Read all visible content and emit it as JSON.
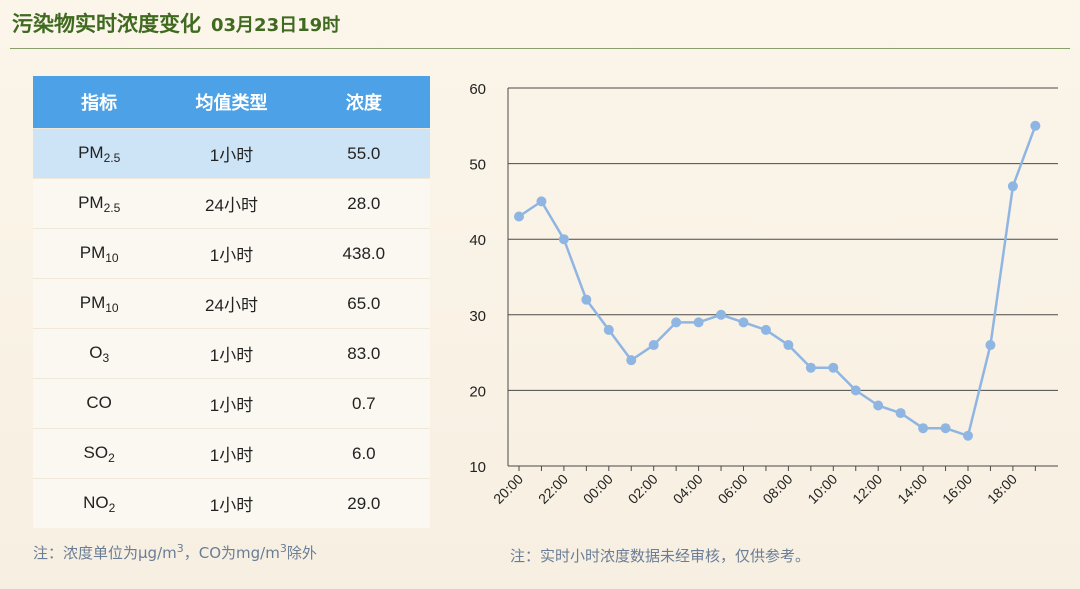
{
  "header": {
    "title": "污染物实时浓度变化",
    "time": "03月23日19时"
  },
  "table": {
    "headers": [
      "指标",
      "均值类型",
      "浓度"
    ],
    "rows": [
      {
        "name": "PM",
        "sub": "2.5",
        "avg": "1小时",
        "value": "55.0"
      },
      {
        "name": "PM",
        "sub": "2.5",
        "avg": "24小时",
        "value": "28.0"
      },
      {
        "name": "PM",
        "sub": "10",
        "avg": "1小时",
        "value": "438.0"
      },
      {
        "name": "PM",
        "sub": "10",
        "avg": "24小时",
        "value": "65.0"
      },
      {
        "name": "O",
        "sub": "3",
        "avg": "1小时",
        "value": "83.0"
      },
      {
        "name": "CO",
        "sub": "",
        "avg": "1小时",
        "value": "0.7"
      },
      {
        "name": "SO",
        "sub": "2",
        "avg": "1小时",
        "value": "6.0"
      },
      {
        "name": "NO",
        "sub": "2",
        "avg": "1小时",
        "value": "29.0"
      }
    ]
  },
  "notes": {
    "left_a": "注：浓度单位为μg/m",
    "left_sup1": "3",
    "left_b": "，CO为mg/m",
    "left_sup2": "3",
    "left_c": "除外",
    "right": "注：实时小时浓度数据未经审核，仅供参考。"
  },
  "chart_data": {
    "type": "line",
    "x": [
      "20:00",
      "21:00",
      "22:00",
      "23:00",
      "00:00",
      "01:00",
      "02:00",
      "03:00",
      "04:00",
      "05:00",
      "06:00",
      "07:00",
      "08:00",
      "09:00",
      "10:00",
      "11:00",
      "12:00",
      "13:00",
      "14:00",
      "15:00",
      "16:00",
      "17:00",
      "18:00",
      "19:00"
    ],
    "xtick_labels": [
      "20:00",
      "22:00",
      "00:00",
      "02:00",
      "04:00",
      "06:00",
      "08:00",
      "10:00",
      "12:00",
      "14:00",
      "16:00",
      "18:00"
    ],
    "values": [
      43,
      45,
      40,
      32,
      28,
      24,
      26,
      29,
      29,
      30,
      29,
      28,
      26,
      23,
      23,
      20,
      18,
      17,
      15,
      15,
      14,
      26,
      47,
      55
    ],
    "ylim": [
      10,
      60
    ],
    "yticks": [
      "10",
      "20",
      "30",
      "40",
      "50",
      "60"
    ],
    "grid": true,
    "line_color": "#8fb6e3",
    "point_color": "#8fb6e3"
  }
}
